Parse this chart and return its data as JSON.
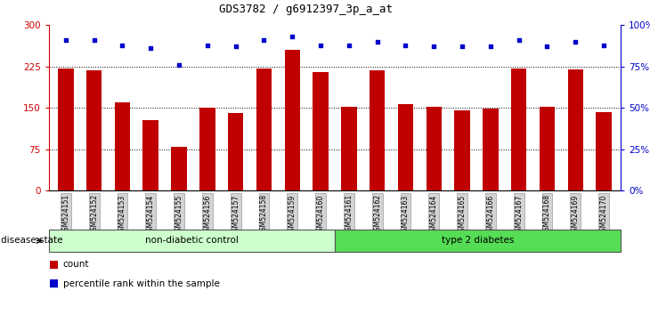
{
  "title": "GDS3782 / g6912397_3p_a_at",
  "samples": [
    "GSM524151",
    "GSM524152",
    "GSM524153",
    "GSM524154",
    "GSM524155",
    "GSM524156",
    "GSM524157",
    "GSM524158",
    "GSM524159",
    "GSM524160",
    "GSM524161",
    "GSM524162",
    "GSM524163",
    "GSM524164",
    "GSM524165",
    "GSM524166",
    "GSM524167",
    "GSM524168",
    "GSM524169",
    "GSM524170"
  ],
  "counts": [
    222,
    218,
    160,
    128,
    80,
    150,
    140,
    222,
    255,
    215,
    152,
    218,
    157,
    152,
    145,
    148,
    222,
    152,
    220,
    143
  ],
  "percentiles": [
    91,
    91,
    88,
    86,
    76,
    88,
    87,
    91,
    93,
    88,
    88,
    90,
    88,
    87,
    87,
    87,
    91,
    87,
    90,
    88
  ],
  "bar_color": "#c00000",
  "dot_color": "#0000cc",
  "ylim_left": [
    0,
    300
  ],
  "ylim_right": [
    0,
    100
  ],
  "yticks_left": [
    0,
    75,
    150,
    225,
    300
  ],
  "yticks_right": [
    0,
    25,
    50,
    75,
    100
  ],
  "ytick_labels_left": [
    "0",
    "75",
    "150",
    "225",
    "300"
  ],
  "ytick_labels_right": [
    "0%",
    "25%",
    "50%",
    "75%",
    "100%"
  ],
  "group1_label": "non-diabetic control",
  "group2_label": "type 2 diabetes",
  "group1_count": 10,
  "group1_color": "#ccffcc",
  "group2_color": "#55dd55",
  "disease_state_label": "disease state",
  "legend_count": "count",
  "legend_percentile": "percentile rank within the sample",
  "bg_color": "#ffffff",
  "left_axis_color": "#cc0000",
  "right_axis_color": "#0000cc",
  "grid_yticks": [
    75,
    150,
    225
  ],
  "title_fontsize": 9,
  "bar_width": 0.55
}
